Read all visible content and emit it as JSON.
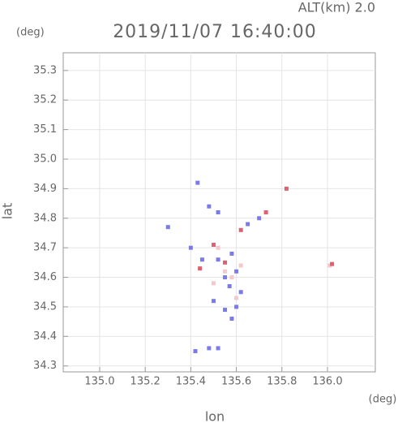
{
  "chart_data": {
    "type": "scatter",
    "title": "2019/11/07 16:40:00",
    "subtitle": "ALT(km) 2.0",
    "y_unit": "(deg)",
    "x_unit": "(deg)",
    "xlabel": "lon",
    "ylabel": "lat",
    "xlim": [
      134.84,
      136.21
    ],
    "ylim": [
      34.28,
      35.36
    ],
    "xticks": [
      {
        "value": 135.0,
        "label": "135.0"
      },
      135.2,
      135.4,
      135.6,
      135.8,
      {
        "value": 136.0,
        "label": "136.0"
      }
    ],
    "yticks": [
      34.3,
      34.4,
      34.5,
      34.6,
      34.7,
      34.8,
      34.9,
      {
        "value": 35.0,
        "label": "35.0"
      },
      35.1,
      35.2,
      35.3
    ],
    "grid": true,
    "series": [
      {
        "color": "#7a7aee",
        "x": [
          135.43,
          135.48,
          135.52,
          135.65,
          135.7,
          135.4,
          135.45,
          135.52,
          135.58,
          135.6,
          135.55,
          135.57,
          135.5,
          135.55,
          135.6,
          135.58,
          135.42,
          135.48,
          135.52,
          135.3,
          135.62
        ],
        "values": [
          34.92,
          34.84,
          34.82,
          34.78,
          34.8,
          34.7,
          34.66,
          34.66,
          34.68,
          34.62,
          34.6,
          34.57,
          34.52,
          34.49,
          34.5,
          34.46,
          34.35,
          34.36,
          34.36,
          34.77,
          34.55
        ]
      },
      {
        "color": "#f5c8cc",
        "x": [
          135.52,
          135.55,
          135.58,
          135.62,
          135.5,
          135.6,
          136.01
        ],
        "values": [
          34.7,
          34.62,
          34.6,
          34.64,
          34.58,
          34.53,
          34.64
        ]
      },
      {
        "color": "#e06070",
        "x": [
          135.82,
          135.62,
          135.55,
          135.44,
          135.5,
          136.02,
          135.73
        ],
        "values": [
          34.9,
          34.76,
          34.65,
          34.63,
          34.71,
          34.645,
          34.82
        ]
      }
    ]
  }
}
